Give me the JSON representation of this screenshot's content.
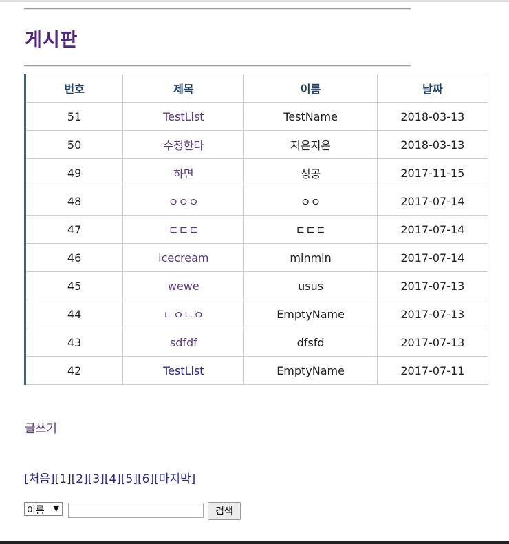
{
  "page": {
    "title": "게시판"
  },
  "table": {
    "headers": [
      "번호",
      "제목",
      "이름",
      "날짜"
    ],
    "rows": [
      {
        "no": "51",
        "subject": "TestList",
        "name": "TestName",
        "date": "2018-03-13"
      },
      {
        "no": "50",
        "subject": "수정한다",
        "name": "지은지은",
        "date": "2018-03-13"
      },
      {
        "no": "49",
        "subject": "하면",
        "name": "성공",
        "date": "2017-11-15"
      },
      {
        "no": "48",
        "subject": "ㅇㅇㅇ",
        "name": "ㅇㅇ",
        "date": "2017-07-14"
      },
      {
        "no": "47",
        "subject": "ㄷㄷㄷ",
        "name": "ㄷㄷㄷ",
        "date": "2017-07-14"
      },
      {
        "no": "46",
        "subject": "icecream",
        "name": "minmin",
        "date": "2017-07-14"
      },
      {
        "no": "45",
        "subject": "wewe",
        "name": "usus",
        "date": "2017-07-13"
      },
      {
        "no": "44",
        "subject": "ㄴㅇㄴㅇ",
        "name": "EmptyName",
        "date": "2017-07-13"
      },
      {
        "no": "43",
        "subject": "sdfdf",
        "name": "dfsfd",
        "date": "2017-07-13"
      },
      {
        "no": "42",
        "subject": "TestList",
        "name": "EmptyName",
        "date": "2017-07-11"
      }
    ]
  },
  "write_link": "글쓰기",
  "pagination": {
    "first": "[처음]",
    "pages": [
      "[1]",
      "[2]",
      "[3]",
      "[4]",
      "[5]",
      "[6]"
    ],
    "last": "[마지막]"
  },
  "search": {
    "select_value": "이름",
    "select_arrow": "▼",
    "query": "",
    "button_label": "검색"
  },
  "colors": {
    "title": "#4f2482",
    "visited_link": "#5b3a8a",
    "link": "#2b2b95",
    "table_accent": "#3e6478"
  }
}
